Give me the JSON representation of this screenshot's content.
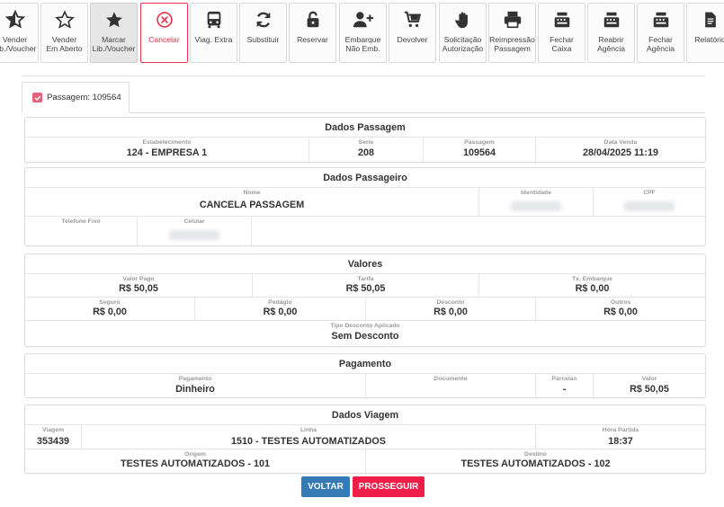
{
  "toolbar": {
    "buttons": [
      {
        "label": "Vender\nLib./Voucher",
        "icon": "star-half-icon"
      },
      {
        "label": "Vender\nEm Aberto",
        "icon": "star-outline-icon"
      },
      {
        "label": "Marcar\nLib./Voucher",
        "icon": "star-filled-icon"
      },
      {
        "label": "Cancelar",
        "icon": "cancel-circle-icon"
      },
      {
        "label": "Viag. Extra",
        "icon": "bus-icon"
      },
      {
        "label": "Substituir",
        "icon": "refresh-icon"
      },
      {
        "label": "Reservar",
        "icon": "unlock-icon"
      },
      {
        "label": "Embarque\nNão Emb.",
        "icon": "user-plus-icon"
      },
      {
        "label": "Devolver",
        "icon": "cart-return-icon"
      },
      {
        "label": "Solicitação\nAutorização",
        "icon": "hand-icon"
      },
      {
        "label": "Reimpressão\nPassagem",
        "icon": "printer-icon"
      },
      {
        "label": "Fechar\nCaixa",
        "icon": "cash-register-icon"
      },
      {
        "label": "Reabrir\nAgência",
        "icon": "cash-register-icon"
      },
      {
        "label": "Fechar\nAgência",
        "icon": "cash-register-icon"
      },
      {
        "label": "Relatório",
        "icon": "document-icon"
      }
    ],
    "cancel_color": "#e8334a"
  },
  "tab": {
    "label": "Passagem: 109564"
  },
  "dados_passagem": {
    "title": "Dados Passagem",
    "estabelecimento_label": "Estabelecimento",
    "estabelecimento": "124 - EMPRESA 1",
    "serie_label": "Serie",
    "serie": "208",
    "passagem_label": "Passagem",
    "passagem": "109564",
    "data_venda_label": "Data Venda",
    "data_venda": "28/04/2025 11:19"
  },
  "dados_passageiro": {
    "title": "Dados Passageiro",
    "nome_label": "Nome",
    "nome": "CANCELA PASSAGEM",
    "identidade_label": "Identidade",
    "cpf_label": "CPF",
    "telefone_label": "Telefone Fixo",
    "celular_label": "Celular"
  },
  "valores": {
    "title": "Valores",
    "valor_pago_label": "Valor Pago",
    "valor_pago": "R$ 50,05",
    "tarifa_label": "Tarifa",
    "tarifa": "R$ 50,05",
    "tx_embarque_label": "Tx. Embarque",
    "tx_embarque": "R$ 0,00",
    "seguro_label": "Seguro",
    "seguro": "R$ 0,00",
    "pedagio_label": "Pedágio",
    "pedagio": "R$ 0,00",
    "desconto_label": "Desconto",
    "desconto": "R$ 0,00",
    "outros_label": "Outros",
    "outros": "R$ 0,00",
    "tipo_desconto_label": "Tipo Desconto Aplicado",
    "tipo_desconto": "Sem Desconto"
  },
  "pagamento": {
    "title": "Pagamento",
    "pagamento_label": "Pagamento",
    "pagamento": "Dinheiro",
    "documento_label": "Documento",
    "documento": "",
    "parcelas_label": "Parcelas",
    "parcelas": "-",
    "valor_label": "Valor",
    "valor": "R$ 50,05"
  },
  "dados_viagem": {
    "title": "Dados Viagem",
    "viagem_label": "Viagem",
    "viagem": "353439",
    "linha_label": "Linha",
    "linha": "1510 - TESTES AUTOMATIZADOS",
    "hora_partida_label": "Hora Partida",
    "hora_partida": "18:37",
    "origem_label": "Origem",
    "origem": "TESTES AUTOMATIZADOS - 101",
    "destino_label": "Destino",
    "destino": "TESTES AUTOMATIZADOS - 102"
  },
  "actions": {
    "voltar": "VOLTAR",
    "prosseguir": "PROSSEGUIR"
  },
  "colors": {
    "primary": "#337ab7",
    "danger": "#ee1e48",
    "tab_check": "#e8617a"
  }
}
